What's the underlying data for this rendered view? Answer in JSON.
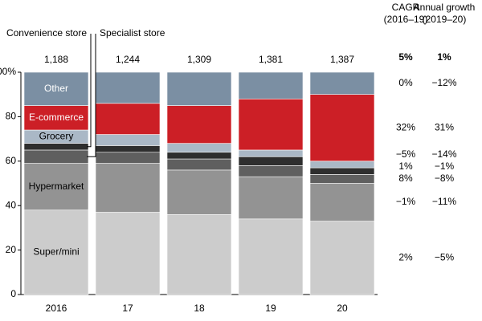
{
  "chart_data": {
    "type": "stacked_bar_100",
    "categories": [
      "2016",
      "17",
      "18",
      "19",
      "20"
    ],
    "totals": [
      1188,
      1244,
      1309,
      1381,
      1387
    ],
    "totals_labels": [
      "1,188",
      "1,244",
      "1,309",
      "1,381",
      "1,387"
    ],
    "ylim": [
      0,
      100
    ],
    "yticks": [
      0,
      20,
      40,
      60,
      80,
      {
        "value": 100,
        "label": "100%"
      }
    ],
    "growth_headers": [
      [
        "CAGR",
        "(2016–19)"
      ],
      [
        "Annual growth",
        "(2019–20)"
      ]
    ],
    "total_growth": [
      "5%",
      "1%"
    ],
    "series": [
      {
        "name": "Super/mini",
        "color": "#cccccc",
        "label_position": "inside",
        "label_color": "#000000",
        "values": [
          38,
          37,
          36,
          34,
          33
        ],
        "cagr": "2%",
        "annual_growth": "−5%"
      },
      {
        "name": "Hypermarket",
        "color": "#939393",
        "label_position": "inside",
        "label_color": "#000000",
        "values": [
          21,
          22,
          20,
          19,
          17
        ],
        "cagr": "−1%",
        "annual_growth": "−11%"
      },
      {
        "name": "Specialist store",
        "color": "#5f5f5f",
        "label_position": "callout",
        "values": [
          6,
          5,
          5,
          5,
          4
        ],
        "cagr": "8%",
        "annual_growth": "−8%"
      },
      {
        "name": "Convenience store",
        "color": "#2e2e2e",
        "label_position": "callout",
        "values": [
          3,
          3,
          3,
          4,
          3
        ],
        "cagr": "1%",
        "annual_growth": "−1%"
      },
      {
        "name": "Grocery",
        "color": "#aab8c6",
        "label_position": "inside",
        "label_color": "#000000",
        "values": [
          6,
          5,
          4,
          3,
          3
        ],
        "cagr": "−5%",
        "annual_growth": "−14%"
      },
      {
        "name": "E-commerce",
        "color": "#cc1f26",
        "label_position": "inside",
        "label_color": "#ffffff",
        "values": [
          11,
          14,
          17,
          23,
          30
        ],
        "cagr": "32%",
        "annual_growth": "31%"
      },
      {
        "name": "Other",
        "color": "#7b8fa3",
        "label_position": "inside",
        "label_color": "#ffffff",
        "values": [
          15,
          14,
          15,
          12,
          10
        ],
        "cagr": "0%",
        "annual_growth": "−12%"
      }
    ]
  }
}
